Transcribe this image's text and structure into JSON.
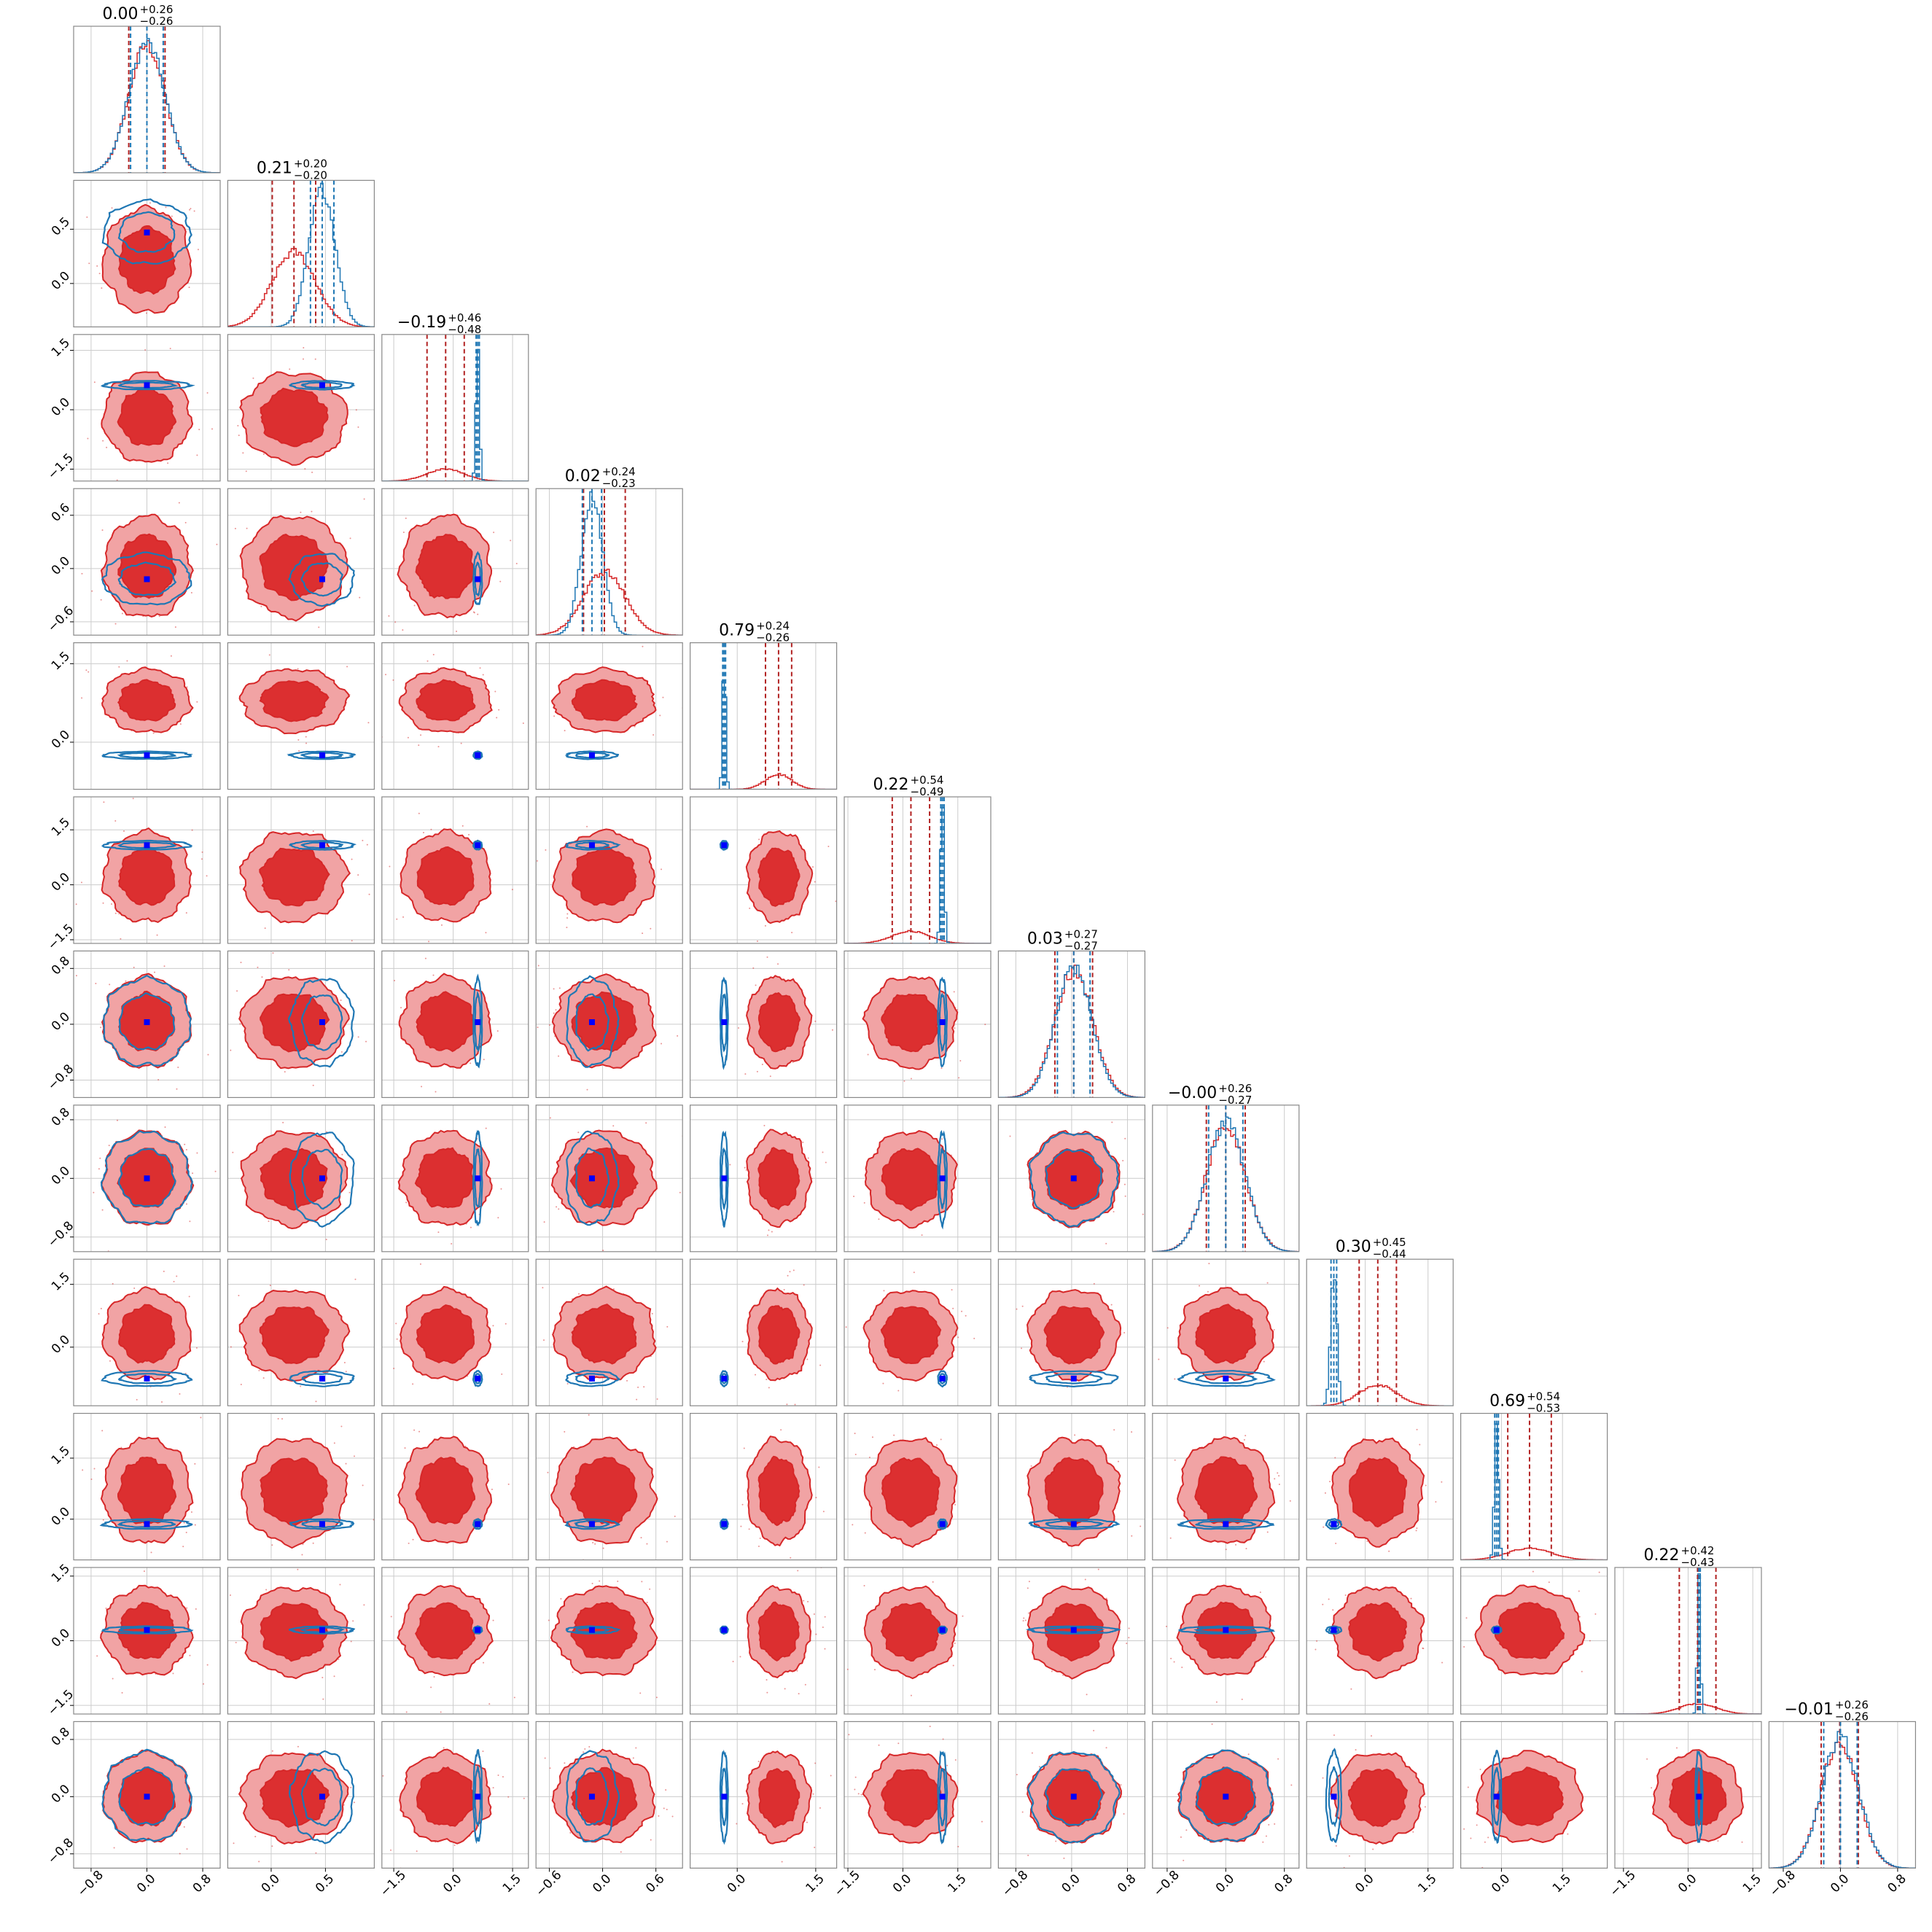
{
  "chart_data": {
    "type": "corner",
    "n_params": 12,
    "colors": {
      "posterior_a": "#d62728",
      "posterior_a_fill_outer": "#f1a3a4",
      "posterior_a_fill_inner": "#dc2f30",
      "posterior_b": "#1f77b4",
      "truth_marker": "#0000ff",
      "quantile_a": "#b22222",
      "grid": "#cccccc",
      "frame": "#888888"
    },
    "titles": [
      {
        "median": "0.00",
        "plus": "+0.26",
        "minus": "−0.26"
      },
      {
        "median": "0.21",
        "plus": "+0.20",
        "minus": "−0.20"
      },
      {
        "median": "−0.19",
        "plus": "+0.46",
        "minus": "−0.48"
      },
      {
        "median": "0.02",
        "plus": "+0.24",
        "minus": "−0.23"
      },
      {
        "median": "0.79",
        "plus": "+0.24",
        "minus": "−0.26"
      },
      {
        "median": "0.22",
        "plus": "+0.54",
        "minus": "−0.49"
      },
      {
        "median": "0.03",
        "plus": "+0.27",
        "minus": "−0.27"
      },
      {
        "median": "−0.00",
        "plus": "+0.26",
        "minus": "−0.27"
      },
      {
        "median": "0.30",
        "plus": "+0.45",
        "minus": "−0.44"
      },
      {
        "median": "0.69",
        "plus": "+0.54",
        "minus": "−0.53"
      },
      {
        "median": "0.22",
        "plus": "+0.42",
        "minus": "−0.43"
      },
      {
        "median": "−0.01",
        "plus": "+0.26",
        "minus": "−0.26"
      }
    ],
    "ranges": [
      [
        -1.05,
        1.05
      ],
      [
        -0.4,
        0.95
      ],
      [
        -1.8,
        1.9
      ],
      [
        -0.75,
        0.9
      ],
      [
        -0.9,
        1.9
      ],
      [
        -1.6,
        2.4
      ],
      [
        -1.05,
        1.05
      ],
      [
        -1.0,
        1.0
      ],
      [
        -1.4,
        2.1
      ],
      [
        -1.0,
        2.6
      ],
      [
        -1.7,
        1.7
      ],
      [
        -1.0,
        1.05
      ]
    ],
    "ticks": [
      [
        "−0.8",
        "0.0",
        "0.8"
      ],
      [
        "0.0",
        "0.5"
      ],
      [
        "−1.5",
        "0.0",
        "1.5"
      ],
      [
        "−0.6",
        "0.0",
        "0.6"
      ],
      [
        "0.0",
        "1.5"
      ],
      [
        "−1.5",
        "0.0",
        "1.5"
      ],
      [
        "−0.8",
        "0.0",
        "0.8"
      ],
      [
        "−0.8",
        "0.0",
        "0.8"
      ],
      [
        "0.0",
        "1.5"
      ],
      [
        "0.0",
        "1.5"
      ],
      [
        "−1.5",
        "0.0",
        "1.5"
      ],
      [
        "−0.8",
        "0.0",
        "0.8"
      ]
    ],
    "posterior_a": {
      "median": [
        0.0,
        0.21,
        -0.19,
        0.02,
        0.79,
        0.22,
        0.03,
        -0.0,
        0.3,
        0.69,
        0.22,
        -0.01
      ],
      "sigma": [
        0.26,
        0.2,
        0.47,
        0.235,
        0.25,
        0.51,
        0.27,
        0.265,
        0.445,
        0.535,
        0.425,
        0.26
      ]
    },
    "posterior_b": {
      "median": [
        0.0,
        0.47,
        0.62,
        -0.12,
        -0.25,
        1.08,
        0.03,
        0.0,
        -0.75,
        -0.12,
        0.25,
        0.0
      ],
      "sigma": [
        0.26,
        0.12,
        0.045,
        0.12,
        0.03,
        0.05,
        0.26,
        0.26,
        0.075,
        0.05,
        0.035,
        0.26
      ]
    },
    "truths": [
      0.0,
      0.47,
      0.62,
      -0.12,
      -0.25,
      1.08,
      0.03,
      0.0,
      -0.75,
      -0.12,
      0.25,
      0.0
    ],
    "grid": true,
    "legend": "none"
  }
}
